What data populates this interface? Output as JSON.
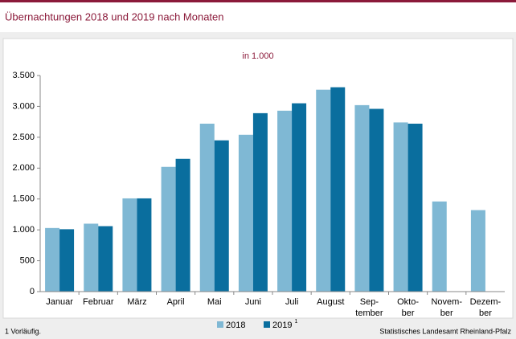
{
  "chart_data": {
    "type": "bar",
    "title": "Übernachtungen 2018 und 2019 nach Monaten",
    "subtitle": "in 1.000",
    "categories": [
      "Januar",
      "Februar",
      "März",
      "April",
      "Mai",
      "Juni",
      "Juli",
      "August",
      "Sep-\ntember",
      "Okto-\nber",
      "Novem-\nber",
      "Dezem-\nber"
    ],
    "series": [
      {
        "name": "2018",
        "color": "#7fb8d4",
        "values": [
          1030,
          1100,
          1510,
          2020,
          2720,
          2540,
          2930,
          3270,
          3020,
          2740,
          1460,
          1320
        ]
      },
      {
        "name": "2019",
        "color": "#0a6e9e",
        "values": [
          1010,
          1060,
          1510,
          2150,
          2450,
          2890,
          3050,
          3310,
          2960,
          2720,
          null,
          null
        ]
      }
    ],
    "legend_note": "1",
    "footnote": "1 Vorläufig.",
    "source": "Statistisches Landesamt Rheinland-Pfalz",
    "ylim": [
      0,
      3500
    ],
    "yticks": [
      0,
      {
        "value": 500,
        "label": "500"
      },
      {
        "value": 1000,
        "label": "1.000"
      },
      {
        "value": 1500,
        "label": "1.500"
      },
      {
        "value": 2000,
        "label": "2.000"
      },
      {
        "value": 2500,
        "label": "2.500"
      },
      {
        "value": 3000,
        "label": "3.000"
      },
      {
        "value": 3500,
        "label": "3.500"
      }
    ],
    "grid": false
  }
}
